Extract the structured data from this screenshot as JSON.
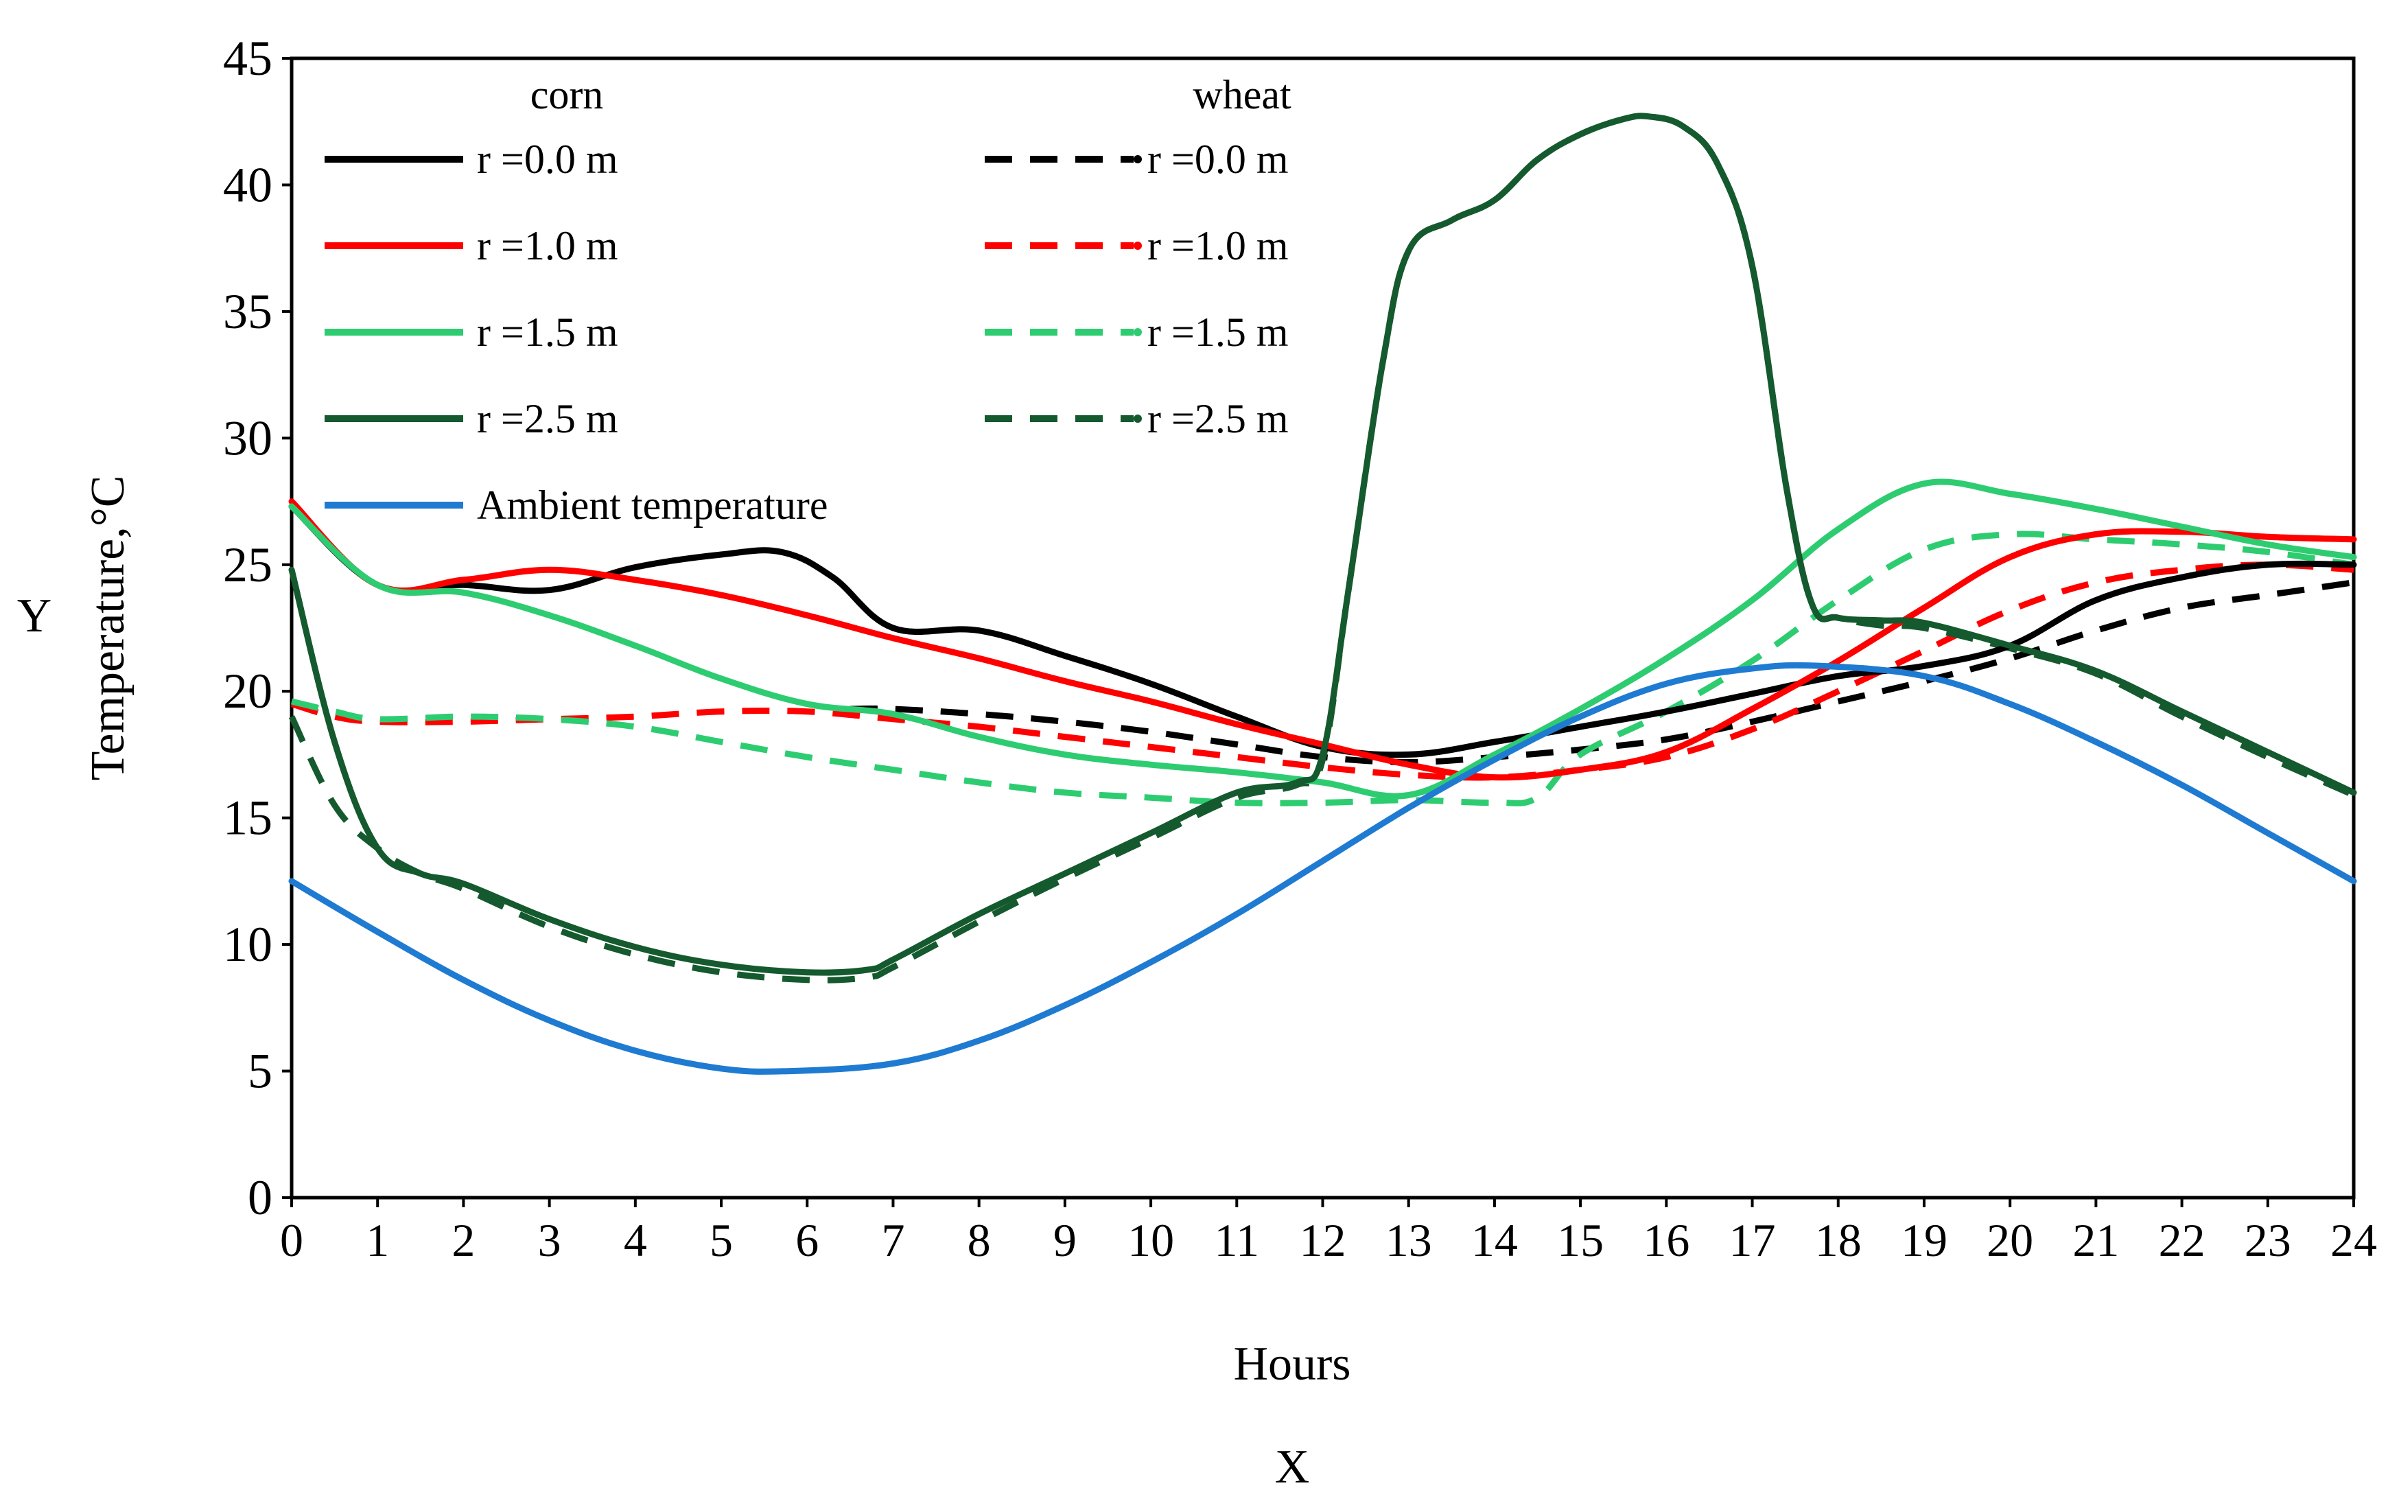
{
  "chart_data": {
    "type": "line",
    "title": "",
    "xlabel": "Hours",
    "ylabel": "Temperature,°C",
    "x_axis_letter": "X",
    "y_axis_letter": "Y",
    "xlim": [
      0,
      24
    ],
    "ylim": [
      0,
      45
    ],
    "x_ticks": [
      "0",
      "1",
      "2",
      "3",
      "4",
      "5",
      "6",
      "7",
      "8",
      "9",
      "10",
      "11",
      "12",
      "13",
      "14",
      "15",
      "16",
      "17",
      "18",
      "19",
      "20",
      "21",
      "22",
      "23",
      "24"
    ],
    "y_ticks": [
      "0",
      "5",
      "10",
      "15",
      "20",
      "25",
      "30",
      "35",
      "40",
      "45"
    ],
    "grid": false,
    "legend": {
      "placement": "top-left",
      "group_headers": [
        "corn",
        "wheat"
      ]
    },
    "series": [
      {
        "name": "r =0.0 m",
        "group": "corn",
        "color": "#000000",
        "dashed": false,
        "x": [
          0,
          1,
          2,
          3,
          4,
          5,
          5.7,
          6.3,
          7,
          8,
          9,
          10,
          11,
          12,
          13,
          14,
          15,
          16,
          17,
          18,
          19,
          20,
          21,
          22,
          23,
          24
        ],
        "y": [
          27.3,
          24.2,
          24.2,
          24,
          24.9,
          25.4,
          25.5,
          24.5,
          22.5,
          22.4,
          21.4,
          20.3,
          19,
          17.8,
          17.5,
          18,
          18.6,
          19.2,
          19.9,
          20.6,
          21,
          21.8,
          23.6,
          24.5,
          25,
          25
        ]
      },
      {
        "name": "r =1.0 m",
        "group": "corn",
        "color": "#ff0000",
        "dashed": false,
        "x": [
          0,
          1,
          2,
          3,
          4,
          5,
          6,
          7,
          8,
          9,
          10,
          11,
          12,
          13,
          14,
          15,
          16,
          17,
          18,
          19,
          20,
          21,
          22,
          23,
          24
        ],
        "y": [
          27.5,
          24.2,
          24.4,
          24.8,
          24.4,
          23.8,
          23,
          22.1,
          21.3,
          20.4,
          19.6,
          18.7,
          17.9,
          17.1,
          16.6,
          16.9,
          17.6,
          19.3,
          21.2,
          23.3,
          25.3,
          26.2,
          26.3,
          26.1,
          26
        ]
      },
      {
        "name": "r =1.5 m",
        "group": "corn",
        "color": "#2ecc71",
        "dashed": false,
        "x": [
          0,
          1,
          2,
          3,
          4,
          5,
          6,
          7,
          8,
          9,
          10,
          11,
          12,
          13,
          14,
          15,
          16,
          17,
          18,
          19,
          20,
          21,
          22,
          23,
          24
        ],
        "y": [
          27.3,
          24.2,
          23.9,
          23,
          21.8,
          20.5,
          19.5,
          19.1,
          18.2,
          17.5,
          17.1,
          16.8,
          16.4,
          15.9,
          17.5,
          19.3,
          21.3,
          23.6,
          26.4,
          28.2,
          27.8,
          27.2,
          26.5,
          25.8,
          25.3
        ]
      },
      {
        "name": "r =2.5 m",
        "group": "corn",
        "color": "#145a2e",
        "dashed": false,
        "x": [
          0,
          0.5,
          1,
          1.5,
          2,
          3,
          4,
          5,
          6,
          6.7,
          7,
          8,
          9,
          10,
          11,
          11.7,
          12,
          12.3,
          12.7,
          13,
          13.5,
          14,
          14.5,
          15,
          15.5,
          15.8,
          16.2,
          16.6,
          17,
          17.4,
          17.7,
          18,
          18.5,
          19,
          20,
          21,
          22,
          23,
          24
        ],
        "y": [
          24.8,
          18,
          13.8,
          12.8,
          12.4,
          11,
          9.9,
          9.2,
          8.9,
          9,
          9.4,
          11.2,
          12.8,
          14.4,
          16,
          16.4,
          17.5,
          24,
          33,
          37.4,
          38.6,
          39.4,
          41,
          42,
          42.6,
          42.7,
          42.3,
          40.8,
          36.8,
          28,
          23.4,
          22.9,
          22.8,
          22.7,
          21.8,
          20.8,
          19.2,
          17.6,
          16
        ]
      },
      {
        "name": "Ambient temperature",
        "group": "corn",
        "color": "#1f7bd1",
        "dashed": false,
        "x": [
          0,
          1,
          2,
          3,
          4,
          5,
          5.8,
          7,
          8,
          9,
          10,
          11,
          12,
          13,
          14,
          15,
          16,
          17,
          17.8,
          19,
          20,
          21,
          22,
          23,
          24
        ],
        "y": [
          12.5,
          10.5,
          8.6,
          7,
          5.8,
          5.1,
          5,
          5.3,
          6.2,
          7.6,
          9.3,
          11.2,
          13.3,
          15.4,
          17.3,
          19,
          20.3,
          20.9,
          21,
          20.6,
          19.5,
          18,
          16.3,
          14.4,
          12.5
        ]
      },
      {
        "name": "r =0.0 m",
        "group": "wheat",
        "color": "#000000",
        "dashed": true,
        "x": [
          6.5,
          7,
          8,
          9,
          10,
          11,
          12,
          13,
          14,
          15,
          16,
          17,
          18,
          19,
          20,
          21,
          22,
          23,
          24
        ],
        "y": [
          19.3,
          19.3,
          19.1,
          18.8,
          18.4,
          17.9,
          17.4,
          17.2,
          17.4,
          17.7,
          18.1,
          18.8,
          19.6,
          20.4,
          21.3,
          22.4,
          23.3,
          23.8,
          24.3
        ]
      },
      {
        "name": "r =1.0 m",
        "group": "wheat",
        "color": "#ff0000",
        "dashed": true,
        "x": [
          0,
          0.5,
          1,
          2,
          3,
          4,
          5,
          6,
          7,
          8,
          9,
          10,
          11,
          12,
          13,
          14,
          15,
          16,
          17,
          18,
          19,
          20,
          21,
          22,
          23,
          24
        ],
        "y": [
          19.5,
          19,
          18.8,
          18.8,
          18.9,
          19,
          19.2,
          19.2,
          18.9,
          18.6,
          18.2,
          17.8,
          17.4,
          17,
          16.7,
          16.6,
          16.9,
          17.4,
          18.5,
          20,
          21.6,
          23.2,
          24.3,
          24.8,
          25,
          24.8
        ]
      },
      {
        "name": "r =1.5 m",
        "group": "wheat",
        "color": "#2ecc71",
        "dashed": true,
        "x": [
          0,
          0.5,
          1,
          2,
          3,
          4,
          5,
          6,
          7,
          8,
          9,
          10,
          11,
          12,
          13,
          14,
          14.5,
          15,
          16,
          17,
          18,
          19,
          20,
          21,
          22,
          23,
          24
        ],
        "y": [
          19.6,
          19.2,
          18.9,
          19,
          18.9,
          18.6,
          18,
          17.4,
          16.9,
          16.4,
          16,
          15.8,
          15.6,
          15.6,
          15.7,
          15.6,
          15.8,
          17.5,
          19.2,
          21.2,
          23.6,
          25.6,
          26.2,
          26,
          25.8,
          25.5,
          25
        ]
      },
      {
        "name": "r =2.5 m",
        "group": "wheat",
        "color": "#145a2e",
        "dashed": true,
        "x": [
          0,
          0.5,
          1,
          1.5,
          2,
          3,
          4,
          5,
          6,
          6.7,
          7,
          8,
          9,
          10,
          11,
          11.7,
          12,
          12.3,
          12.7,
          13,
          13.5,
          14,
          14.5,
          15,
          15.5,
          15.8,
          16.2,
          16.6,
          17,
          17.4,
          17.7,
          18,
          18.5,
          19,
          20,
          21,
          22,
          23,
          24
        ],
        "y": [
          19,
          15.5,
          13.8,
          12.8,
          12.2,
          10.7,
          9.6,
          8.9,
          8.6,
          8.7,
          9.1,
          10.9,
          12.6,
          14.2,
          15.8,
          16.3,
          17.3,
          24,
          33,
          37.4,
          38.6,
          39.4,
          41,
          42,
          42.6,
          42.7,
          42.3,
          40.8,
          36.8,
          28,
          23.4,
          22.9,
          22.6,
          22.5,
          21.7,
          20.7,
          19,
          17.4,
          15.9
        ]
      }
    ]
  }
}
